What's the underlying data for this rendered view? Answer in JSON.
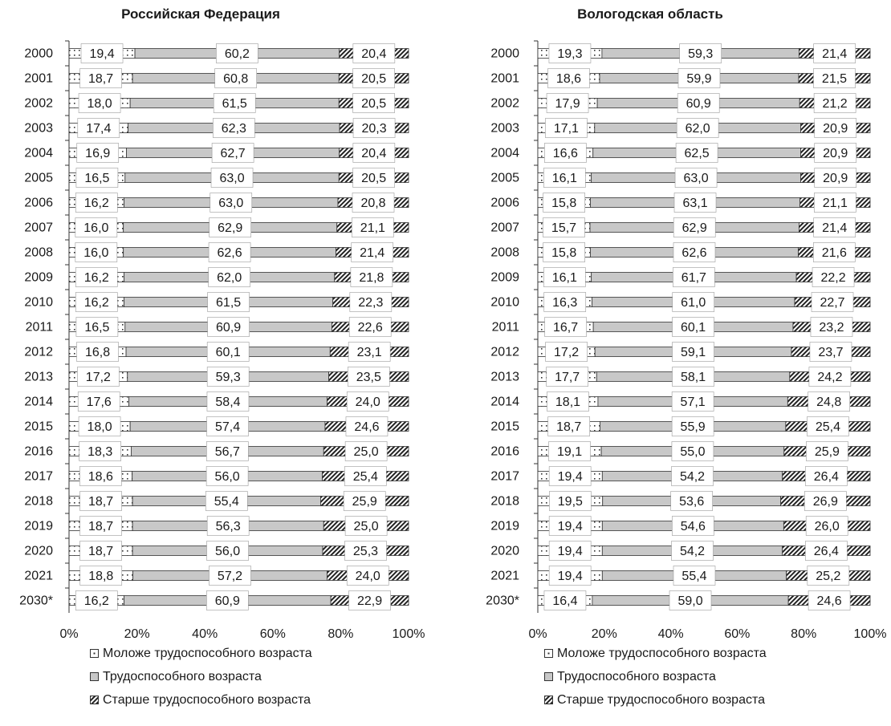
{
  "legend": {
    "young": "Моложе трудоспособного возраста",
    "working": "Трудоспособного возраста",
    "old": "Старше трудоспособного возраста"
  },
  "colors": {
    "working": "#c8c8c8",
    "stroke": "#333333",
    "label_bg": "#ffffff"
  },
  "chart_data": [
    {
      "type": "bar",
      "orientation": "horizontal",
      "stacked": "100%",
      "title": "Российская Федерация",
      "categories": [
        "2000",
        "2001",
        "2002",
        "2003",
        "2004",
        "2005",
        "2006",
        "2007",
        "2008",
        "2009",
        "2010",
        "2011",
        "2012",
        "2013",
        "2014",
        "2015",
        "2016",
        "2017",
        "2018",
        "2019",
        "2020",
        "2021",
        "2030*"
      ],
      "series": [
        {
          "name": "Моложе трудоспособного возраста",
          "values": [
            "19,4",
            "18,7",
            "18,0",
            "17,4",
            "16,9",
            "16,5",
            "16,2",
            "16,0",
            "16,0",
            "16,2",
            "16,2",
            "16,5",
            "16,8",
            "17,2",
            "17,6",
            "18,0",
            "18,3",
            "18,6",
            "18,7",
            "18,7",
            "18,7",
            "18,8",
            "16,2"
          ]
        },
        {
          "name": "Трудоспособного возраста",
          "values": [
            "60,2",
            "60,8",
            "61,5",
            "62,3",
            "62,7",
            "63,0",
            "63,0",
            "62,9",
            "62,6",
            "62,0",
            "61,5",
            "60,9",
            "60,1",
            "59,3",
            "58,4",
            "57,4",
            "56,7",
            "56,0",
            "55,4",
            "56,3",
            "56,0",
            "57,2",
            "60,9"
          ]
        },
        {
          "name": "Старше трудоспособного возраста",
          "values": [
            "20,4",
            "20,5",
            "20,5",
            "20,3",
            "20,4",
            "20,5",
            "20,8",
            "21,1",
            "21,4",
            "21,8",
            "22,3",
            "22,6",
            "23,1",
            "23,5",
            "24,0",
            "24,6",
            "25,0",
            "25,4",
            "25,9",
            "25,0",
            "25,3",
            "24,0",
            "22,9"
          ]
        }
      ],
      "xticks": [
        "0%",
        "20%",
        "40%",
        "60%",
        "80%",
        "100%"
      ],
      "xlim": [
        0,
        100
      ],
      "legend_position": "bottom"
    },
    {
      "type": "bar",
      "orientation": "horizontal",
      "stacked": "100%",
      "title": "Вологодская область",
      "categories": [
        "2000",
        "2001",
        "2002",
        "2003",
        "2004",
        "2005",
        "2006",
        "2007",
        "2008",
        "2009",
        "2010",
        "2011",
        "2012",
        "2013",
        "2014",
        "2015",
        "2016",
        "2017",
        "2018",
        "2019",
        "2020",
        "2021",
        "2030*"
      ],
      "series": [
        {
          "name": "Моложе трудоспособного возраста",
          "values": [
            "19,3",
            "18,6",
            "17,9",
            "17,1",
            "16,6",
            "16,1",
            "15,8",
            "15,7",
            "15,8",
            "16,1",
            "16,3",
            "16,7",
            "17,2",
            "17,7",
            "18,1",
            "18,7",
            "19,1",
            "19,4",
            "19,5",
            "19,4",
            "19,4",
            "19,4",
            "16,4"
          ]
        },
        {
          "name": "Трудоспособного возраста",
          "values": [
            "59,3",
            "59,9",
            "60,9",
            "62,0",
            "62,5",
            "63,0",
            "63,1",
            "62,9",
            "62,6",
            "61,7",
            "61,0",
            "60,1",
            "59,1",
            "58,1",
            "57,1",
            "55,9",
            "55,0",
            "54,2",
            "53,6",
            "54,6",
            "54,2",
            "55,4",
            "59,0"
          ]
        },
        {
          "name": "Старше трудоспособного возраста",
          "values": [
            "21,4",
            "21,5",
            "21,2",
            "20,9",
            "20,9",
            "20,9",
            "21,1",
            "21,4",
            "21,6",
            "22,2",
            "22,7",
            "23,2",
            "23,7",
            "24,2",
            "24,8",
            "25,4",
            "25,9",
            "26,4",
            "26,9",
            "26,0",
            "26,4",
            "25,2",
            "24,6"
          ]
        }
      ],
      "xticks": [
        "0%",
        "20%",
        "40%",
        "60%",
        "80%",
        "100%"
      ],
      "xlim": [
        0,
        100
      ],
      "legend_position": "bottom"
    }
  ]
}
